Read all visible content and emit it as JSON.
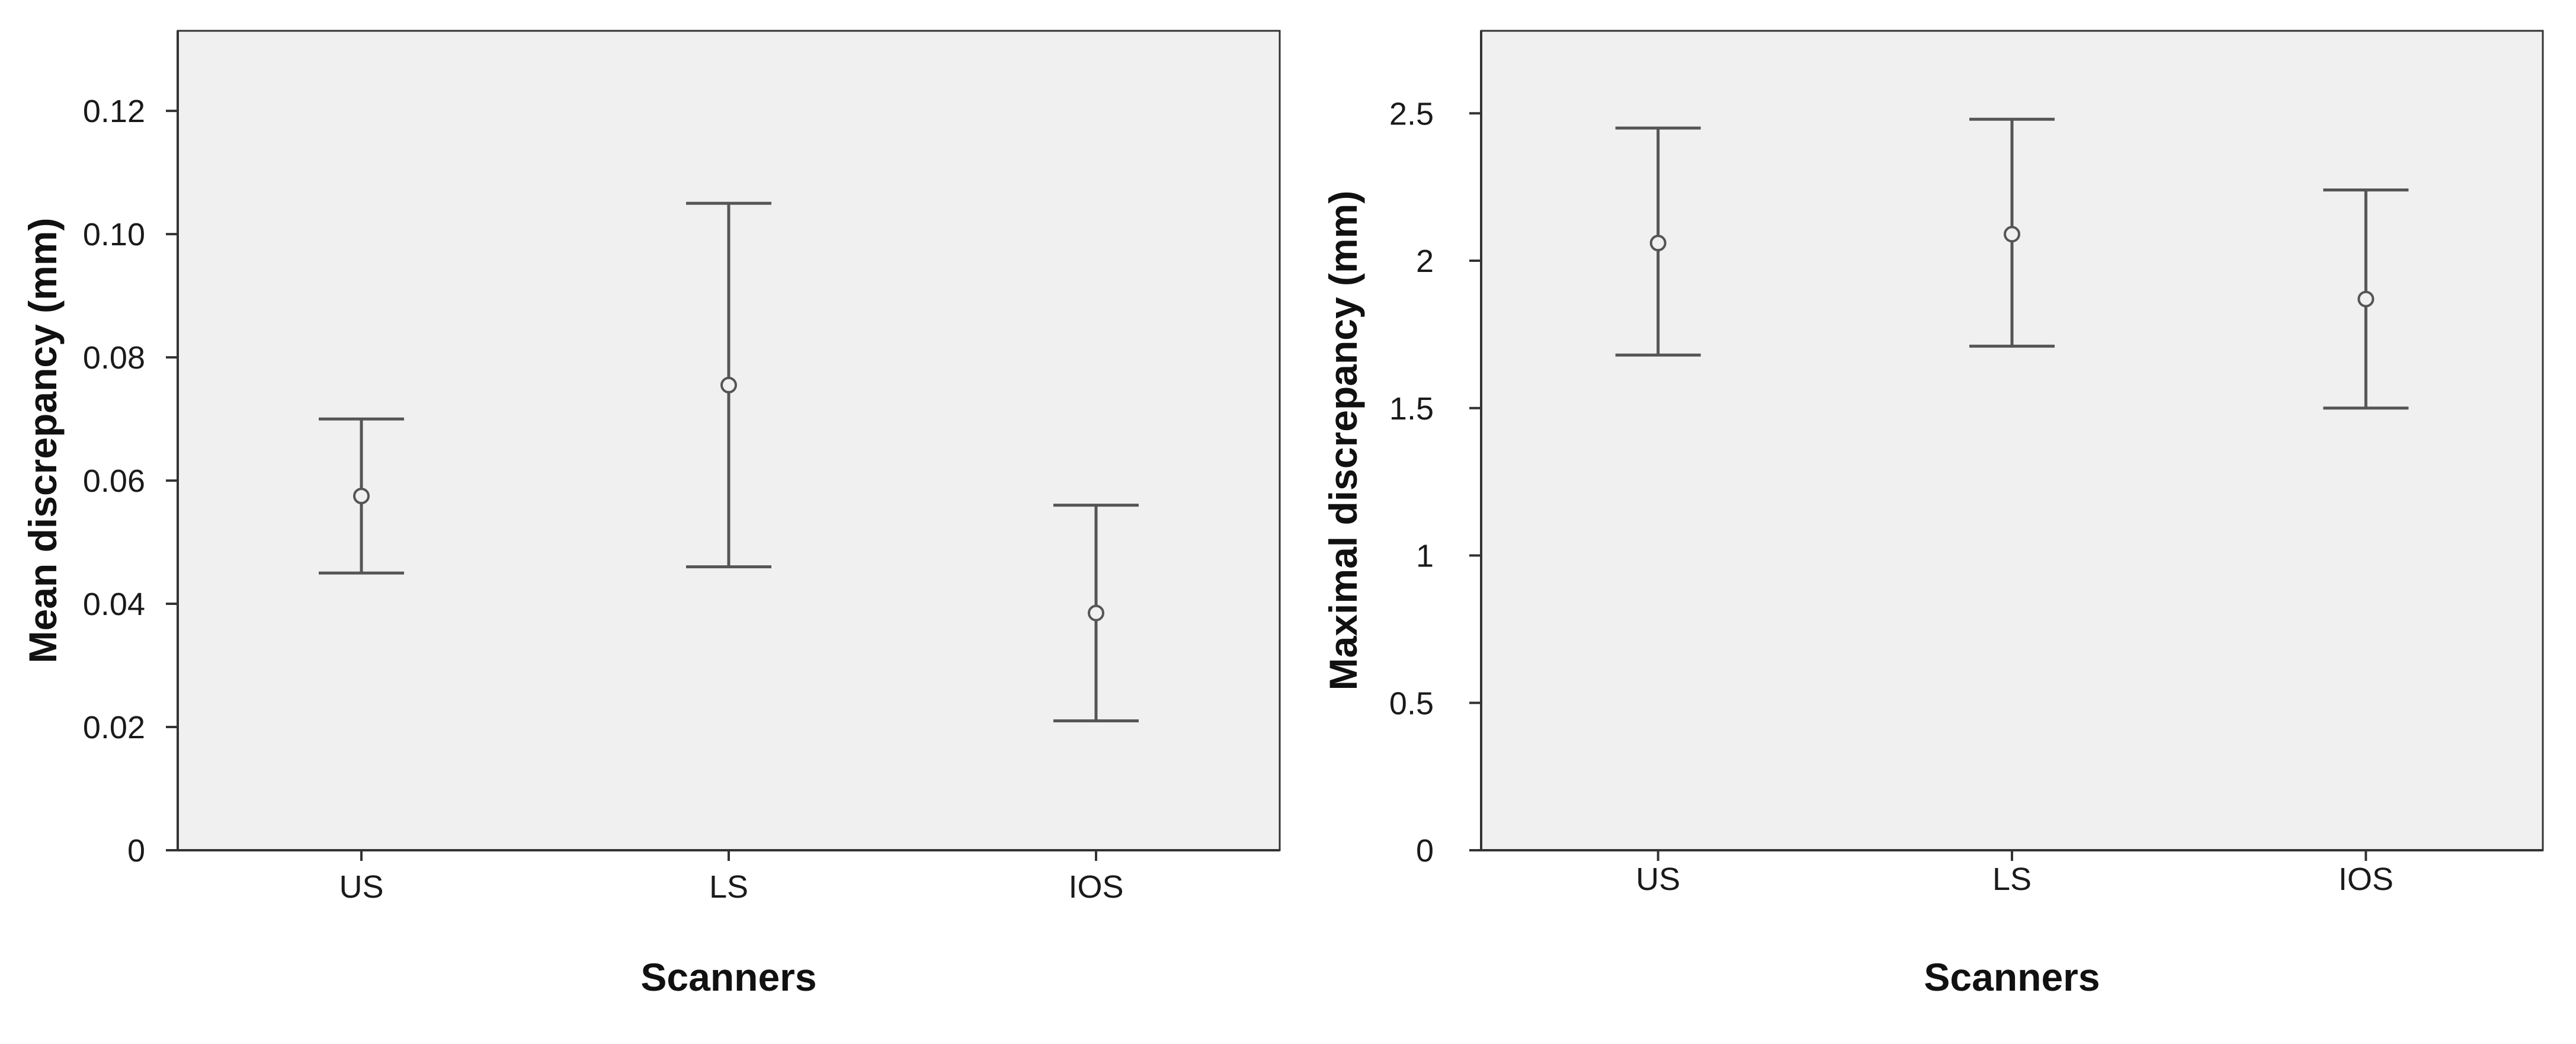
{
  "chart_data": [
    {
      "type": "errorbar",
      "title": "",
      "xlabel": "Scanners",
      "ylabel": "Mean discrepancy (mm)",
      "categories": [
        "US",
        "LS",
        "IOS"
      ],
      "means": [
        0.0575,
        0.0755,
        0.0385
      ],
      "lower": [
        0.045,
        0.046,
        0.021
      ],
      "upper": [
        0.07,
        0.105,
        0.056
      ],
      "ylim": [
        0,
        0.133
      ],
      "yticks": [
        0,
        0.02,
        0.04,
        0.06,
        0.08,
        0.1,
        0.12
      ],
      "yticklabels": [
        "0",
        "0.02",
        "0.04",
        "0.06",
        "0.08",
        "0.10",
        "0.12"
      ],
      "grid": false,
      "colors": {
        "bar": "#555555",
        "background": "#f0f0f0"
      }
    },
    {
      "type": "errorbar",
      "title": "",
      "xlabel": "Scanners",
      "ylabel": "Maximal discrepancy (mm)",
      "categories": [
        "US",
        "LS",
        "IOS"
      ],
      "means": [
        2.06,
        2.09,
        1.87
      ],
      "lower": [
        1.68,
        1.71,
        1.5
      ],
      "upper": [
        2.45,
        2.48,
        2.24
      ],
      "ylim": [
        0,
        2.78
      ],
      "yticks": [
        0,
        0.5,
        1,
        1.5,
        2,
        2.5
      ],
      "yticklabels": [
        "0",
        "0.5",
        "1",
        "1.5",
        "2",
        "2.5"
      ],
      "grid": false,
      "colors": {
        "bar": "#555555",
        "background": "#f0f0f0"
      }
    }
  ]
}
